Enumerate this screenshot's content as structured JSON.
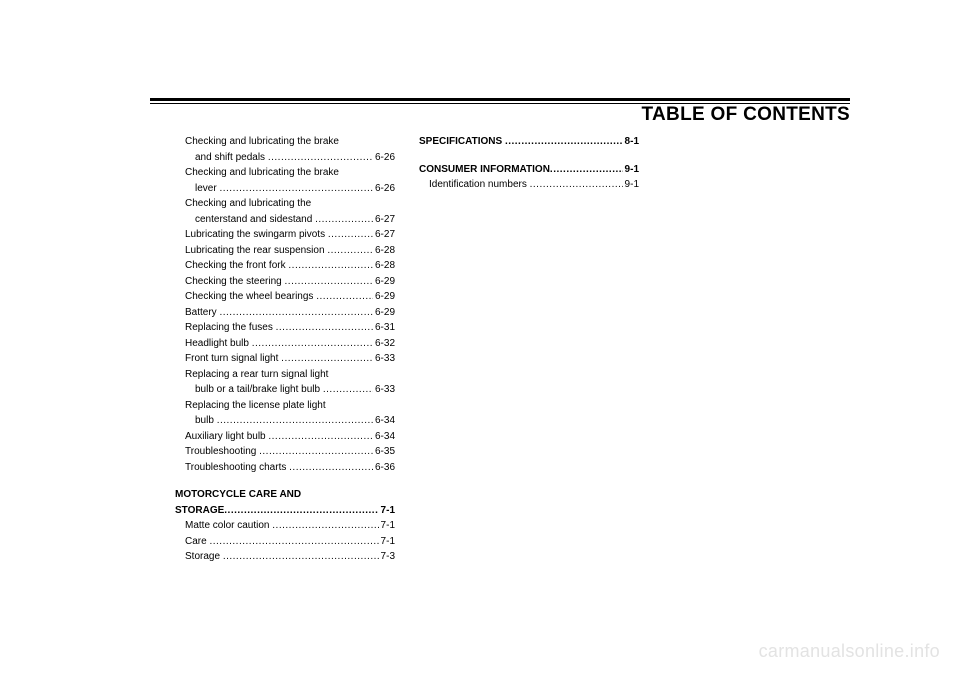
{
  "title": "TABLE OF CONTENTS",
  "watermark": "carmanualsonline.info",
  "col1": [
    {
      "type": "cont",
      "lines": [
        {
          "text": "Checking and lubricating the brake",
          "indent": 10
        },
        {
          "text": "and shift pedals ",
          "page": "6-26",
          "indent": 20
        }
      ]
    },
    {
      "type": "cont",
      "lines": [
        {
          "text": "Checking and lubricating the brake",
          "indent": 10
        },
        {
          "text": "lever ",
          "page": "6-26",
          "indent": 20
        }
      ]
    },
    {
      "type": "cont",
      "lines": [
        {
          "text": "Checking and lubricating the",
          "indent": 10
        },
        {
          "text": "centerstand and sidestand ",
          "page": "6-27",
          "indent": 20
        }
      ]
    },
    {
      "type": "item",
      "text": "Lubricating the swingarm pivots ",
      "page": "6-27",
      "indent": 10
    },
    {
      "type": "item",
      "text": "Lubricating the rear suspension ",
      "page": "6-28",
      "indent": 10
    },
    {
      "type": "item",
      "text": "Checking the front fork ",
      "page": "6-28",
      "indent": 10
    },
    {
      "type": "item",
      "text": "Checking the steering ",
      "page": "6-29",
      "indent": 10
    },
    {
      "type": "item",
      "text": "Checking the wheel bearings ",
      "page": "6-29",
      "indent": 10
    },
    {
      "type": "item",
      "text": "Battery ",
      "page": "6-29",
      "indent": 10
    },
    {
      "type": "item",
      "text": "Replacing the fuses ",
      "page": "6-31",
      "indent": 10
    },
    {
      "type": "item",
      "text": "Headlight bulb ",
      "page": "6-32",
      "indent": 10
    },
    {
      "type": "item",
      "text": "Front turn signal light ",
      "page": "6-33",
      "indent": 10
    },
    {
      "type": "cont",
      "lines": [
        {
          "text": "Replacing a rear turn signal light",
          "indent": 10
        },
        {
          "text": "bulb or a tail/brake light bulb ",
          "page": "6-33",
          "indent": 20
        }
      ]
    },
    {
      "type": "cont",
      "lines": [
        {
          "text": "Replacing the license plate light",
          "indent": 10
        },
        {
          "text": "bulb ",
          "page": "6-34",
          "indent": 20
        }
      ]
    },
    {
      "type": "item",
      "text": "Auxiliary light bulb ",
      "page": "6-34",
      "indent": 10
    },
    {
      "type": "item",
      "text": "Troubleshooting ",
      "page": "6-35",
      "indent": 10
    },
    {
      "type": "item",
      "text": "Troubleshooting charts ",
      "page": "6-36",
      "indent": 10
    },
    {
      "type": "spacer"
    },
    {
      "type": "head2",
      "lines": [
        {
          "text": "MOTORCYCLE CARE AND",
          "indent": 0,
          "bold": true
        },
        {
          "text": "STORAGE",
          "page": "7-1",
          "indent": 0,
          "bold": true
        }
      ]
    },
    {
      "type": "item",
      "text": "Matte color caution ",
      "page": "7-1",
      "indent": 10
    },
    {
      "type": "item",
      "text": "Care ",
      "page": "7-1",
      "indent": 10
    },
    {
      "type": "item",
      "text": "Storage ",
      "page": "7-3",
      "indent": 10
    }
  ],
  "col2": [
    {
      "type": "head",
      "text": "SPECIFICATIONS ",
      "page": "8-1",
      "indent": 0,
      "bold": true
    },
    {
      "type": "spacer"
    },
    {
      "type": "head",
      "text": "CONSUMER INFORMATION",
      "page": "9-1",
      "indent": 0,
      "bold": true
    },
    {
      "type": "item",
      "text": "Identification numbers ",
      "page": "9-1",
      "indent": 10
    }
  ]
}
